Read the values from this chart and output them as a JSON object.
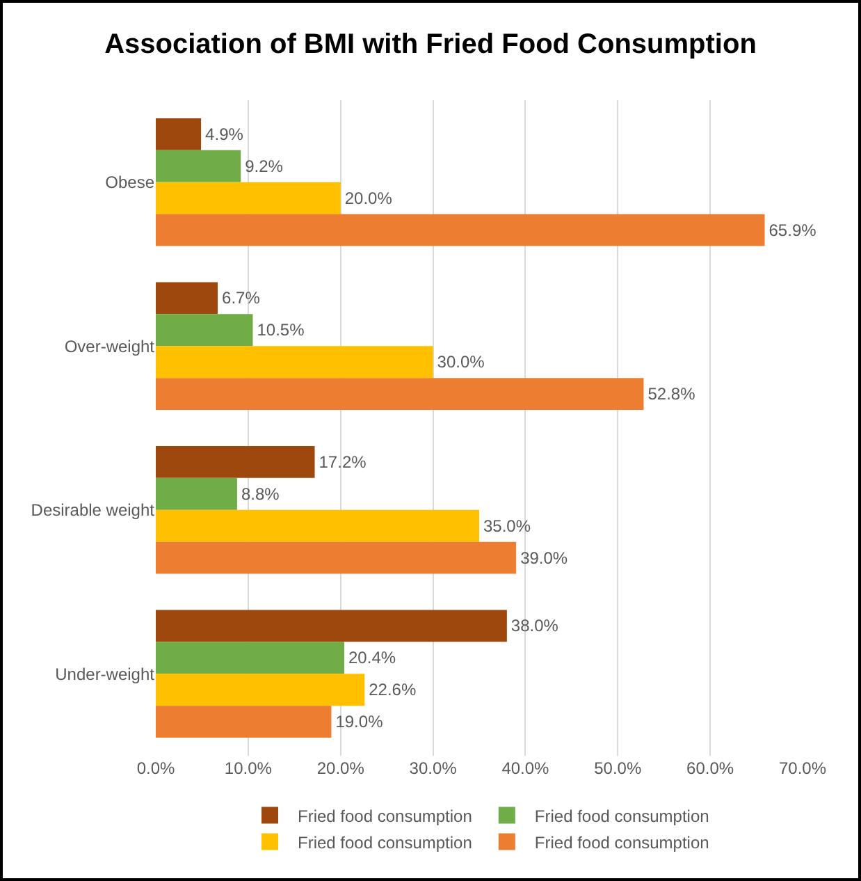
{
  "chart_data": {
    "type": "bar",
    "orientation": "horizontal",
    "title": "Association of BMI with Fried Food Consumption",
    "categories": [
      "Obese",
      "Over-weight",
      "Desirable weight",
      "Under-weight"
    ],
    "series": [
      {
        "name": "Fried food consumption",
        "color": "#9e480e",
        "values": [
          4.9,
          6.7,
          17.2,
          38.0
        ],
        "value_labels": [
          "4.9%",
          "6.7%",
          "17.2%",
          "38.0%"
        ]
      },
      {
        "name": "Fried food consumption",
        "color": "#70ad47",
        "values": [
          9.2,
          10.5,
          8.8,
          20.4
        ],
        "value_labels": [
          "9.2%",
          "10.5%",
          "8.8%",
          "20.4%"
        ]
      },
      {
        "name": "Fried food consumption",
        "color": "#ffc000",
        "values": [
          20.0,
          30.0,
          35.0,
          22.6
        ],
        "value_labels": [
          "20.0%",
          "30.0%",
          "35.0%",
          "22.6%"
        ]
      },
      {
        "name": "Fried food consumption",
        "color": "#ed7d31",
        "values": [
          65.9,
          52.8,
          39.0,
          19.0
        ],
        "value_labels": [
          "65.9%",
          "52.8%",
          "39.0%",
          "19.0%"
        ]
      }
    ],
    "xlim": [
      0,
      70
    ],
    "xticks": [
      {
        "value": 0,
        "label": "0.0%"
      },
      {
        "value": 10,
        "label": "10.0%"
      },
      {
        "value": 20,
        "label": "20.0%"
      },
      {
        "value": 30,
        "label": "30.0%"
      },
      {
        "value": 40,
        "label": "40.0%"
      },
      {
        "value": 50,
        "label": "50.0%"
      },
      {
        "value": 60,
        "label": "60.0%"
      },
      {
        "value": 70,
        "label": "70.0%"
      }
    ],
    "grid": "x",
    "legend": "bottom"
  }
}
